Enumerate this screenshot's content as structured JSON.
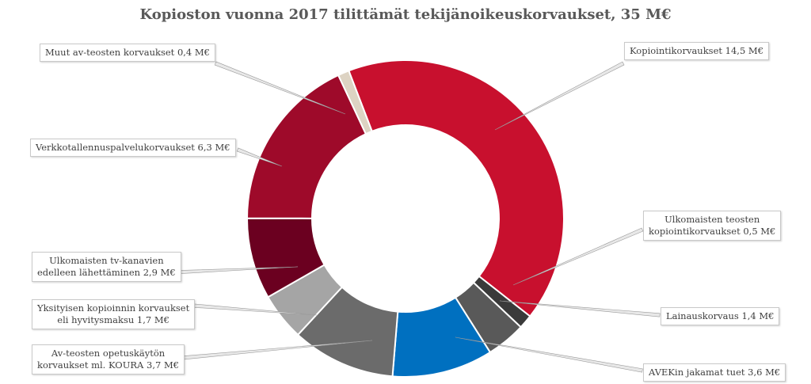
{
  "chart_data": {
    "type": "pie",
    "variant": "donut",
    "title": "Kopioston vuonna 2017 tilittämät tekijänoikeuskorvaukset, 35 M€",
    "unit": "M€",
    "slices": [
      {
        "value": 14.5,
        "color": "#c8102e",
        "label_lines": [
          "Kopiointikorvaukset 14,5 M€"
        ]
      },
      {
        "value": 0.5,
        "color": "#3a3a3a",
        "label_lines": [
          "Ulkomaisten teosten",
          "kopiointikorvaukset 0,5 M€"
        ]
      },
      {
        "value": 1.4,
        "color": "#595959",
        "label_lines": [
          "Lainauskorvaus 1,4 M€"
        ]
      },
      {
        "value": 3.6,
        "color": "#0070c0",
        "label_lines": [
          "AVEKin jakamat tuet 3,6 M€"
        ]
      },
      {
        "value": 3.7,
        "color": "#6b6b6b",
        "label_lines": [
          "Av-teosten opetuskäytön",
          "korvaukset ml. KOURA 3,7 M€"
        ]
      },
      {
        "value": 1.7,
        "color": "#a5a5a5",
        "label_lines": [
          "Yksityisen kopioinnin  korvaukset",
          "eli hyvitysmaksu 1,7 M€"
        ]
      },
      {
        "value": 2.9,
        "color": "#6b0020",
        "label_lines": [
          "Ulkomaisten tv-kanavien",
          "edelleen lähettäminen 2,9 M€"
        ]
      },
      {
        "value": 6.3,
        "color": "#9e0a2a",
        "label_lines": [
          "Verkkotallennuspalvelukorvaukset 6,3 M€"
        ]
      },
      {
        "value": 0.4,
        "color": "#ddd3c3",
        "label_lines": [
          "Muut av-teosten korvaukset 0,4 M€"
        ]
      }
    ]
  }
}
